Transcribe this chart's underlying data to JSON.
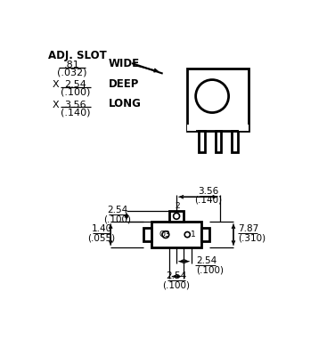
{
  "background_color": "#ffffff",
  "line_color": "#000000",
  "text_color": "#000000",
  "adj_slot_label": "ADJ. SLOT",
  "wide_label": "WIDE",
  "deep_label": "DEEP",
  "long_label": "LONG",
  "dim1_top": ".81",
  "dim1_bot": "(.032)",
  "dim2_top": "2.54",
  "dim2_bot": "(.100)",
  "dim3_top": "3.56",
  "dim3_bot": "(.140)",
  "x_label": "X",
  "dim_356_top": "3.56",
  "dim_356_bot": "(.140)",
  "dim_254left_top": "2.54",
  "dim_254left_bot": "(.100)",
  "dim_140_top": "1.40",
  "dim_140_bot": "(.055)",
  "dim_787_top": "7.87",
  "dim_787_bot": "(.310)",
  "dim_254bot_top": "2.54",
  "dim_254bot_bot": "(.100)",
  "dim_254right_top": "2.54",
  "dim_254right_bot": "(.100)"
}
